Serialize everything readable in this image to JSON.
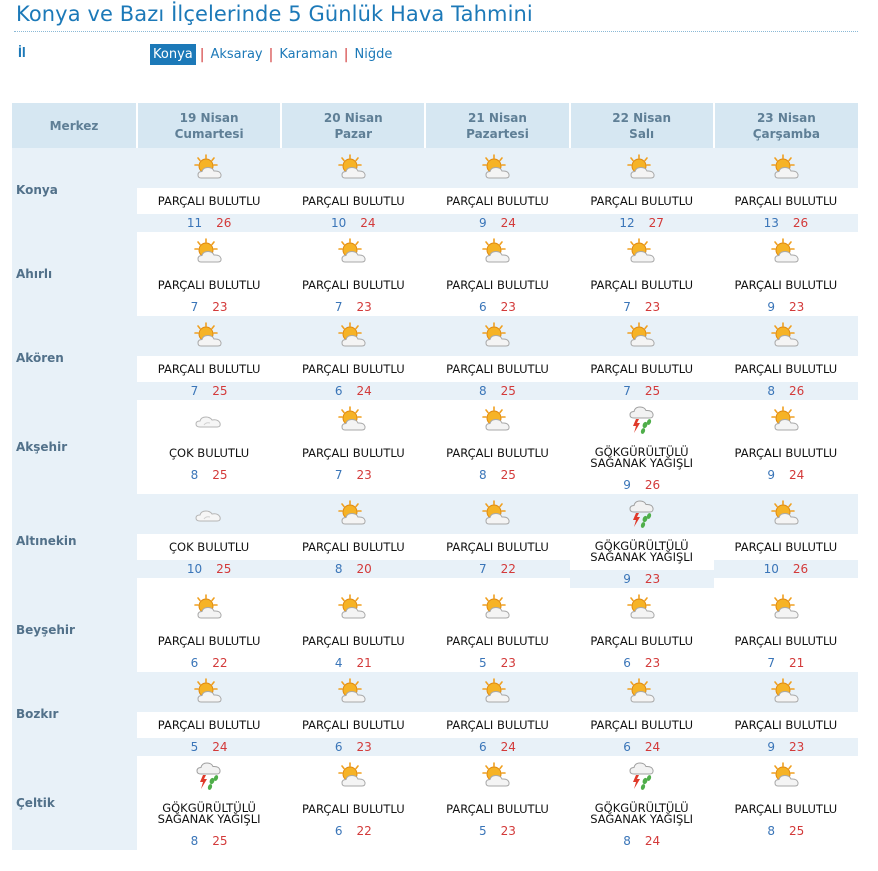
{
  "title": "Konya ve Bazı İlçelerinde 5 Günlük Hava Tahmini",
  "il_label": "İl",
  "provinces": [
    {
      "label": "Konya",
      "active": true
    },
    {
      "label": "Aksaray",
      "active": false
    },
    {
      "label": "Karaman",
      "active": false
    },
    {
      "label": "Niğde",
      "active": false
    }
  ],
  "table": {
    "corner_label": "Merkez",
    "days": [
      {
        "date": "19 Nisan",
        "weekday": "Cumartesi"
      },
      {
        "date": "20 Nisan",
        "weekday": "Pazar"
      },
      {
        "date": "21 Nisan",
        "weekday": "Pazartesi"
      },
      {
        "date": "22 Nisan",
        "weekday": "Salı"
      },
      {
        "date": "23 Nisan",
        "weekday": "Çarşamba"
      }
    ],
    "rows": [
      {
        "city": "Konya",
        "shaded": true,
        "forecasts": [
          {
            "icon": "partly-cloudy-icon",
            "condition": "PARÇALI BULUTLU",
            "min": "11",
            "max": "26"
          },
          {
            "icon": "partly-cloudy-icon",
            "condition": "PARÇALI BULUTLU",
            "min": "10",
            "max": "24"
          },
          {
            "icon": "partly-cloudy-icon",
            "condition": "PARÇALI BULUTLU",
            "min": "9",
            "max": "24"
          },
          {
            "icon": "partly-cloudy-icon",
            "condition": "PARÇALI BULUTLU",
            "min": "12",
            "max": "27"
          },
          {
            "icon": "partly-cloudy-icon",
            "condition": "PARÇALI BULUTLU",
            "min": "13",
            "max": "26"
          }
        ]
      },
      {
        "city": "Ahırlı",
        "shaded": false,
        "forecasts": [
          {
            "icon": "partly-cloudy-icon",
            "condition": "PARÇALI BULUTLU",
            "min": "7",
            "max": "23"
          },
          {
            "icon": "partly-cloudy-icon",
            "condition": "PARÇALI BULUTLU",
            "min": "7",
            "max": "23"
          },
          {
            "icon": "partly-cloudy-icon",
            "condition": "PARÇALI BULUTLU",
            "min": "6",
            "max": "23"
          },
          {
            "icon": "partly-cloudy-icon",
            "condition": "PARÇALI BULUTLU",
            "min": "7",
            "max": "23"
          },
          {
            "icon": "partly-cloudy-icon",
            "condition": "PARÇALI BULUTLU",
            "min": "9",
            "max": "23"
          }
        ]
      },
      {
        "city": "Akören",
        "shaded": true,
        "forecasts": [
          {
            "icon": "partly-cloudy-icon",
            "condition": "PARÇALI BULUTLU",
            "min": "7",
            "max": "25"
          },
          {
            "icon": "partly-cloudy-icon",
            "condition": "PARÇALI BULUTLU",
            "min": "6",
            "max": "24"
          },
          {
            "icon": "partly-cloudy-icon",
            "condition": "PARÇALI BULUTLU",
            "min": "8",
            "max": "25"
          },
          {
            "icon": "partly-cloudy-icon",
            "condition": "PARÇALI BULUTLU",
            "min": "7",
            "max": "25"
          },
          {
            "icon": "partly-cloudy-icon",
            "condition": "PARÇALI BULUTLU",
            "min": "8",
            "max": "26"
          }
        ]
      },
      {
        "city": "Akşehir",
        "shaded": false,
        "forecasts": [
          {
            "icon": "cloudy-icon",
            "condition": "ÇOK BULUTLU",
            "min": "8",
            "max": "25"
          },
          {
            "icon": "partly-cloudy-icon",
            "condition": "PARÇALI BULUTLU",
            "min": "7",
            "max": "23"
          },
          {
            "icon": "partly-cloudy-icon",
            "condition": "PARÇALI BULUTLU",
            "min": "8",
            "max": "25"
          },
          {
            "icon": "thunder-shower-icon",
            "condition": "GÖKGÜRÜLTÜLÜ SAĞANAK YAĞIŞLI",
            "min": "9",
            "max": "26"
          },
          {
            "icon": "partly-cloudy-icon",
            "condition": "PARÇALI BULUTLU",
            "min": "9",
            "max": "24"
          }
        ]
      },
      {
        "city": "Altınekin",
        "shaded": true,
        "forecasts": [
          {
            "icon": "cloudy-icon",
            "condition": "ÇOK BULUTLU",
            "min": "10",
            "max": "25"
          },
          {
            "icon": "partly-cloudy-icon",
            "condition": "PARÇALI BULUTLU",
            "min": "8",
            "max": "20"
          },
          {
            "icon": "partly-cloudy-icon",
            "condition": "PARÇALI BULUTLU",
            "min": "7",
            "max": "22"
          },
          {
            "icon": "thunder-shower-icon",
            "condition": "GÖKGÜRÜLTÜLÜ SAĞANAK YAĞIŞLI",
            "min": "9",
            "max": "23"
          },
          {
            "icon": "partly-cloudy-icon",
            "condition": "PARÇALI BULUTLU",
            "min": "10",
            "max": "26"
          }
        ]
      },
      {
        "city": "Beyşehir",
        "shaded": false,
        "forecasts": [
          {
            "icon": "partly-cloudy-icon",
            "condition": "PARÇALI BULUTLU",
            "min": "6",
            "max": "22"
          },
          {
            "icon": "partly-cloudy-icon",
            "condition": "PARÇALI BULUTLU",
            "min": "4",
            "max": "21"
          },
          {
            "icon": "partly-cloudy-icon",
            "condition": "PARÇALI BULUTLU",
            "min": "5",
            "max": "23"
          },
          {
            "icon": "partly-cloudy-icon",
            "condition": "PARÇALI BULUTLU",
            "min": "6",
            "max": "23"
          },
          {
            "icon": "partly-cloudy-icon",
            "condition": "PARÇALI BULUTLU",
            "min": "7",
            "max": "21"
          }
        ]
      },
      {
        "city": "Bozkır",
        "shaded": true,
        "forecasts": [
          {
            "icon": "partly-cloudy-icon",
            "condition": "PARÇALI BULUTLU",
            "min": "5",
            "max": "24"
          },
          {
            "icon": "partly-cloudy-icon",
            "condition": "PARÇALI BULUTLU",
            "min": "6",
            "max": "23"
          },
          {
            "icon": "partly-cloudy-icon",
            "condition": "PARÇALI BULUTLU",
            "min": "6",
            "max": "24"
          },
          {
            "icon": "partly-cloudy-icon",
            "condition": "PARÇALI BULUTLU",
            "min": "6",
            "max": "24"
          },
          {
            "icon": "partly-cloudy-icon",
            "condition": "PARÇALI BULUTLU",
            "min": "9",
            "max": "23"
          }
        ]
      },
      {
        "city": "Çeltik",
        "shaded": false,
        "forecasts": [
          {
            "icon": "thunder-shower-icon",
            "condition": "GÖKGÜRÜLTÜLÜ SAĞANAK YAĞIŞLI",
            "min": "8",
            "max": "25"
          },
          {
            "icon": "partly-cloudy-icon",
            "condition": "PARÇALI BULUTLU",
            "min": "6",
            "max": "22"
          },
          {
            "icon": "partly-cloudy-icon",
            "condition": "PARÇALI BULUTLU",
            "min": "5",
            "max": "23"
          },
          {
            "icon": "thunder-shower-icon",
            "condition": "GÖKGÜRÜLTÜLÜ SAĞANAK YAĞIŞLI",
            "min": "8",
            "max": "24"
          },
          {
            "icon": "partly-cloudy-icon",
            "condition": "PARÇALI BULUTLU",
            "min": "8",
            "max": "25"
          }
        ]
      }
    ]
  }
}
